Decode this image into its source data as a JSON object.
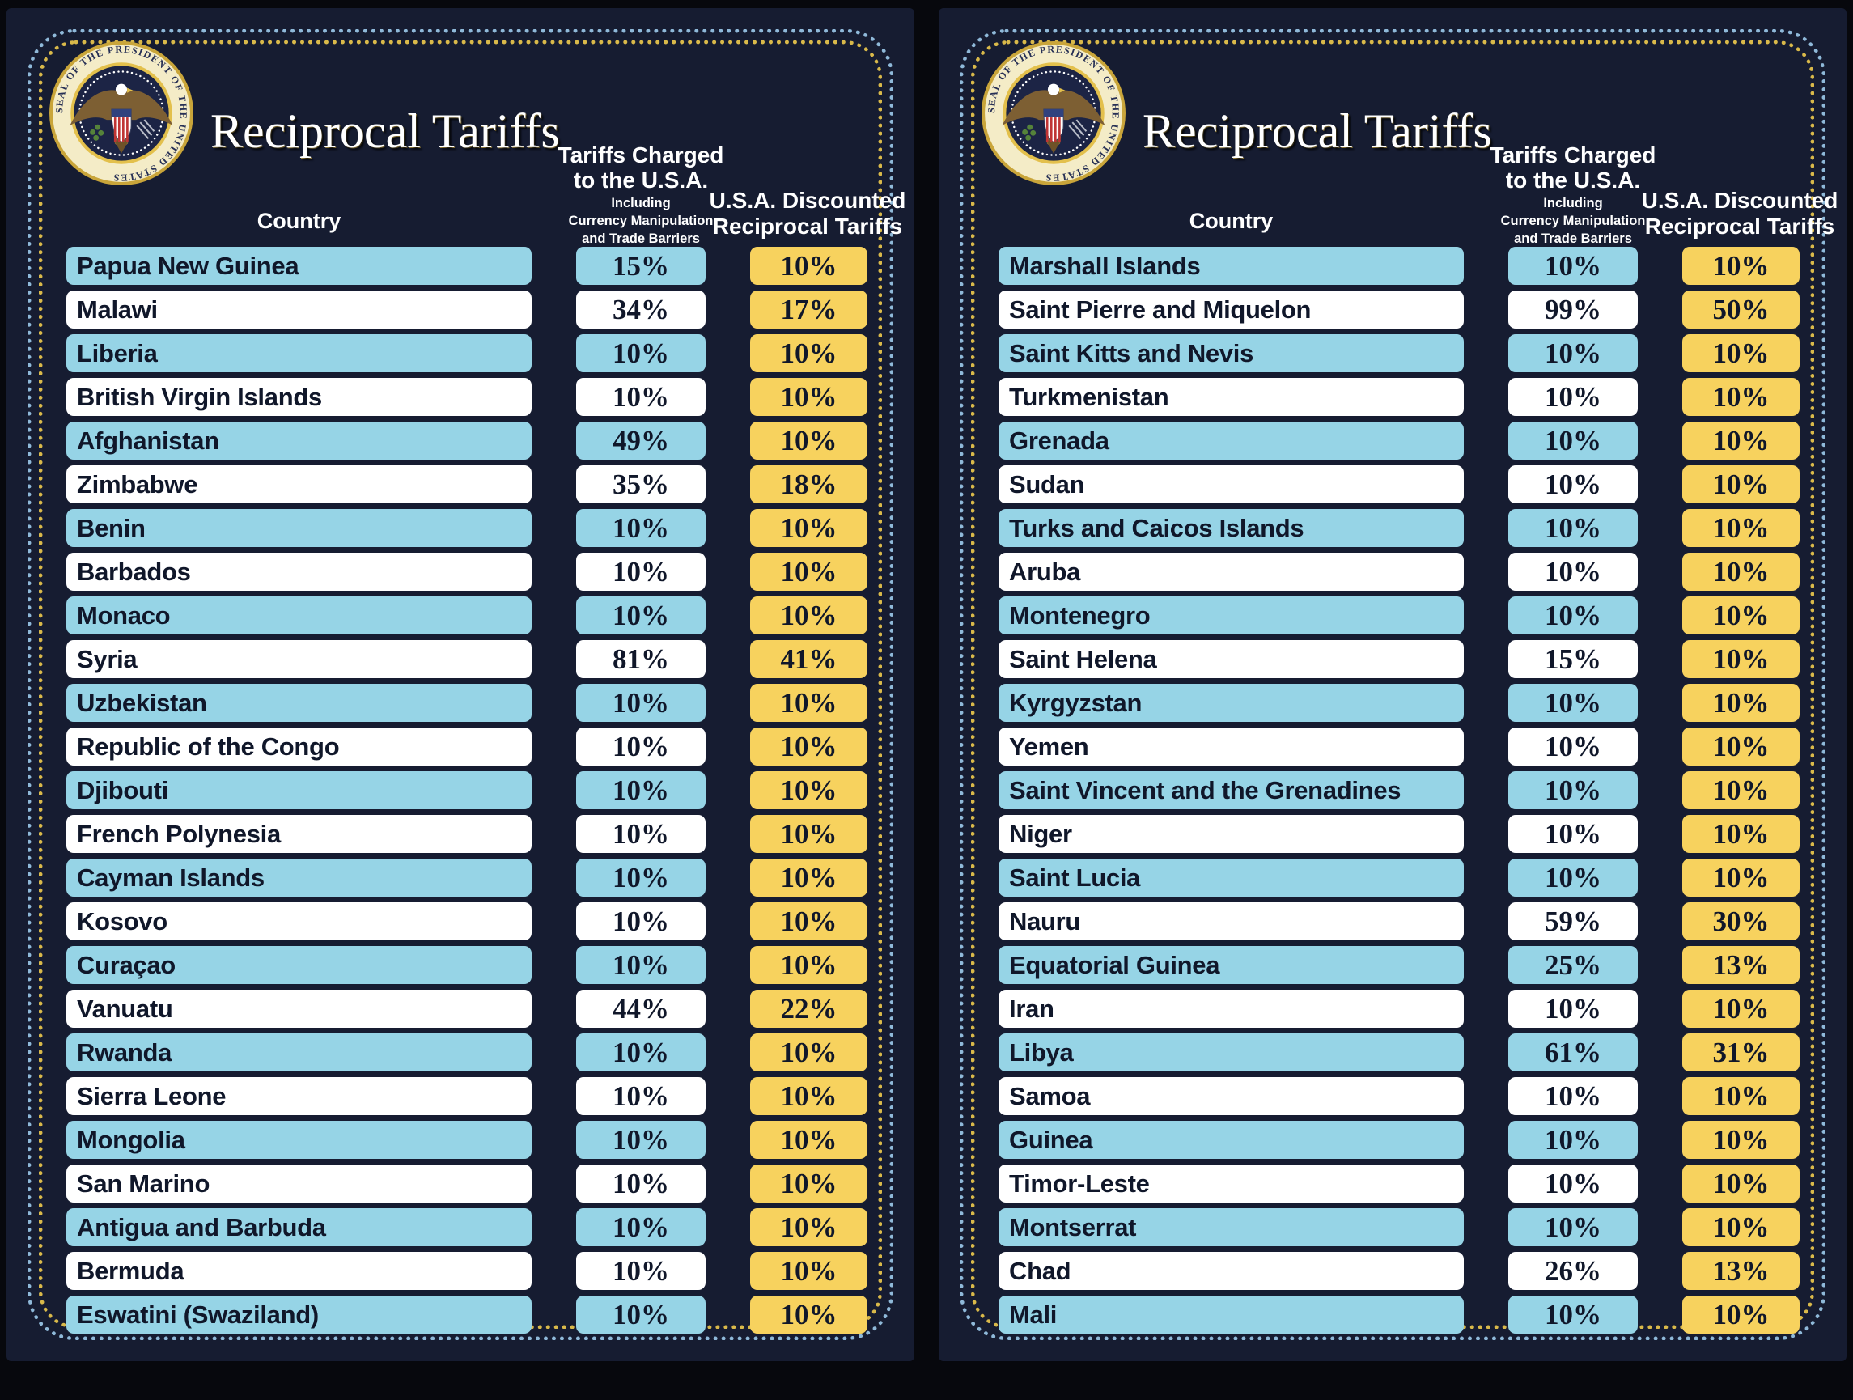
{
  "colors": {
    "page_bg": "#07080d",
    "board_bg": "#161c31",
    "row_blue": "#96d4e6",
    "row_white": "#ffffff",
    "discount_yellow": "#f7d25e",
    "row_text": "#10172a",
    "border_dot_blue": "#8fb9d9",
    "border_dot_yellow": "#d9b94a"
  },
  "seal": {
    "ring_text": "SEAL OF THE PRESIDENT OF THE UNITED STATES"
  },
  "panels": [
    {
      "title": "Reciprocal Tariffs",
      "columns": {
        "country": "Country",
        "charged_title_line1": "Tariffs Charged",
        "charged_title_line2": "to the U.S.A.",
        "charged_sub_line1": "Including",
        "charged_sub_line2": "Currency Manipulation",
        "charged_sub_line3": "and Trade Barriers",
        "discount_line1": "U.S.A. Discounted",
        "discount_line2": "Reciprocal Tariffs"
      }
    },
    {
      "title": "Reciprocal Tariffs",
      "columns": {
        "country": "Country",
        "charged_title_line1": "Tariffs Charged",
        "charged_title_line2": "to the U.S.A.",
        "charged_sub_line1": "Including",
        "charged_sub_line2": "Currency Manipulation",
        "charged_sub_line3": "and Trade Barriers",
        "discount_line1": "U.S.A. Discounted",
        "discount_line2": "Reciprocal Tariffs"
      }
    }
  ],
  "chart_data": [
    {
      "type": "table",
      "title": "Reciprocal Tariffs (left board)",
      "columns": [
        "Country",
        "Tariffs Charged to the U.S.A. Including Currency Manipulation and Trade Barriers",
        "U.S.A. Discounted Reciprocal Tariffs"
      ],
      "rows": [
        [
          "Papua New Guinea",
          "15%",
          "10%"
        ],
        [
          "Malawi",
          "34%",
          "17%"
        ],
        [
          "Liberia",
          "10%",
          "10%"
        ],
        [
          "British Virgin Islands",
          "10%",
          "10%"
        ],
        [
          "Afghanistan",
          "49%",
          "10%"
        ],
        [
          "Zimbabwe",
          "35%",
          "18%"
        ],
        [
          "Benin",
          "10%",
          "10%"
        ],
        [
          "Barbados",
          "10%",
          "10%"
        ],
        [
          "Monaco",
          "10%",
          "10%"
        ],
        [
          "Syria",
          "81%",
          "41%"
        ],
        [
          "Uzbekistan",
          "10%",
          "10%"
        ],
        [
          "Republic of the Congo",
          "10%",
          "10%"
        ],
        [
          "Djibouti",
          "10%",
          "10%"
        ],
        [
          "French Polynesia",
          "10%",
          "10%"
        ],
        [
          "Cayman Islands",
          "10%",
          "10%"
        ],
        [
          "Kosovo",
          "10%",
          "10%"
        ],
        [
          "Curaçao",
          "10%",
          "10%"
        ],
        [
          "Vanuatu",
          "44%",
          "22%"
        ],
        [
          "Rwanda",
          "10%",
          "10%"
        ],
        [
          "Sierra Leone",
          "10%",
          "10%"
        ],
        [
          "Mongolia",
          "10%",
          "10%"
        ],
        [
          "San Marino",
          "10%",
          "10%"
        ],
        [
          "Antigua and Barbuda",
          "10%",
          "10%"
        ],
        [
          "Bermuda",
          "10%",
          "10%"
        ],
        [
          "Eswatini (Swaziland)",
          "10%",
          "10%"
        ]
      ]
    },
    {
      "type": "table",
      "title": "Reciprocal Tariffs (right board)",
      "columns": [
        "Country",
        "Tariffs Charged to the U.S.A. Including Currency Manipulation and Trade Barriers",
        "U.S.A. Discounted Reciprocal Tariffs"
      ],
      "rows": [
        [
          "Marshall Islands",
          "10%",
          "10%"
        ],
        [
          "Saint Pierre and Miquelon",
          "99%",
          "50%"
        ],
        [
          "Saint Kitts and Nevis",
          "10%",
          "10%"
        ],
        [
          "Turkmenistan",
          "10%",
          "10%"
        ],
        [
          "Grenada",
          "10%",
          "10%"
        ],
        [
          "Sudan",
          "10%",
          "10%"
        ],
        [
          "Turks and Caicos Islands",
          "10%",
          "10%"
        ],
        [
          "Aruba",
          "10%",
          "10%"
        ],
        [
          "Montenegro",
          "10%",
          "10%"
        ],
        [
          "Saint Helena",
          "15%",
          "10%"
        ],
        [
          "Kyrgyzstan",
          "10%",
          "10%"
        ],
        [
          "Yemen",
          "10%",
          "10%"
        ],
        [
          "Saint Vincent and the Grenadines",
          "10%",
          "10%"
        ],
        [
          "Niger",
          "10%",
          "10%"
        ],
        [
          "Saint Lucia",
          "10%",
          "10%"
        ],
        [
          "Nauru",
          "59%",
          "30%"
        ],
        [
          "Equatorial Guinea",
          "25%",
          "13%"
        ],
        [
          "Iran",
          "10%",
          "10%"
        ],
        [
          "Libya",
          "61%",
          "31%"
        ],
        [
          "Samoa",
          "10%",
          "10%"
        ],
        [
          "Guinea",
          "10%",
          "10%"
        ],
        [
          "Timor-Leste",
          "10%",
          "10%"
        ],
        [
          "Montserrat",
          "10%",
          "10%"
        ],
        [
          "Chad",
          "26%",
          "13%"
        ],
        [
          "Mali",
          "10%",
          "10%"
        ]
      ]
    }
  ]
}
